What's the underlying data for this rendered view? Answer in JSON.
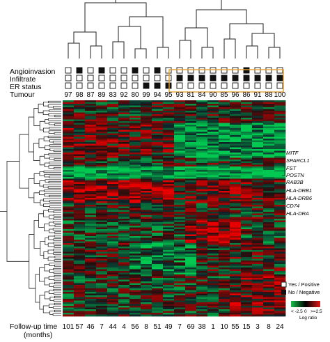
{
  "annotation_labels": {
    "angioinvasion": "Angioinvasion",
    "infiltrate": "Infiltrate",
    "er_status": "ER status",
    "tumour": "Tumour"
  },
  "tumours": [
    "97",
    "98",
    "87",
    "89",
    "83",
    "92",
    "80",
    "99",
    "94",
    "95",
    "93",
    "81",
    "84",
    "90",
    "85",
    "96",
    "86",
    "91",
    "88",
    "100"
  ],
  "angioinvasion": [
    0,
    1,
    0,
    1,
    0,
    0,
    1,
    0,
    1,
    0,
    0,
    0,
    0,
    0,
    0,
    0,
    1,
    0,
    0,
    0
  ],
  "infiltrate": [
    0,
    0,
    0,
    0,
    0,
    0,
    0,
    0,
    0,
    0,
    1,
    1,
    1,
    1,
    1,
    1,
    1,
    1,
    1,
    1
  ],
  "er_status": [
    0,
    0,
    0,
    0,
    0,
    0,
    0,
    1,
    1,
    1,
    0,
    0,
    0,
    0,
    0,
    0,
    0,
    0,
    0,
    0
  ],
  "genes": {
    "group1": [
      "MITF",
      "SPARCL1",
      "FST",
      "POSTN",
      "RAB3B"
    ],
    "group2": [
      "HLA-DRB1",
      "HLA-DRB6",
      "CD74",
      "HLA-DRA"
    ]
  },
  "legend": {
    "yes_label": "Yes / Positive",
    "no_label": "No / Negative",
    "scale_low": "< -2.5",
    "scale_mid": "0",
    "scale_high": ">=2.5",
    "scale_title": "Log ratio"
  },
  "follow_up": {
    "label_line1": "Follow-up time",
    "label_line2": "(months)",
    "values": [
      "101",
      "57",
      "46",
      "7",
      "44",
      "4",
      "56",
      "8",
      "51",
      "49",
      "7",
      "69",
      "38",
      "1",
      "10",
      "55",
      "15",
      "3",
      "8",
      "24"
    ]
  },
  "colors": {
    "red": "#e01818",
    "green": "#17c24a",
    "highlight_box": "#e8a030",
    "filled": "#111111"
  }
}
